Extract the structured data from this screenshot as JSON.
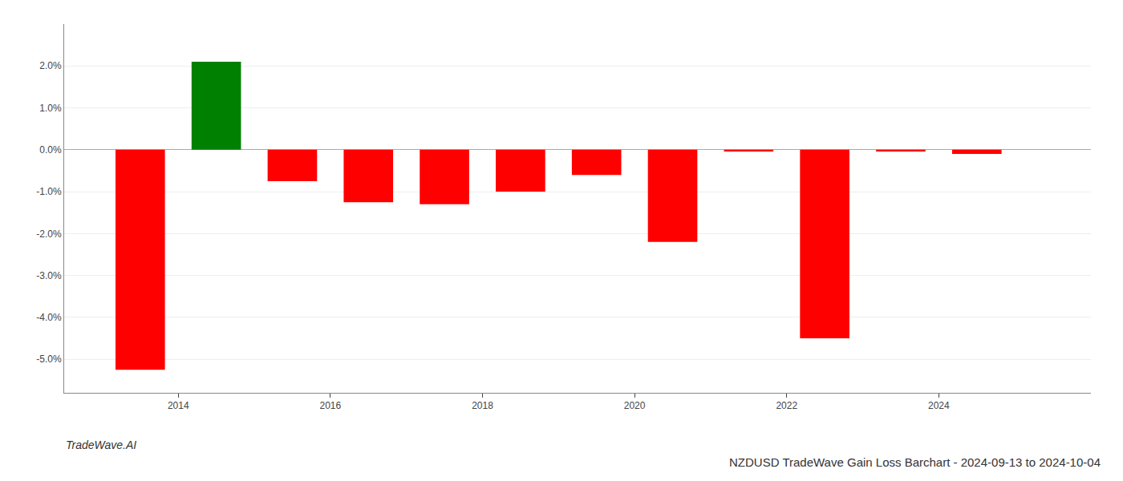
{
  "chart_data": {
    "type": "bar",
    "title": "NZDUSD TradeWave Gain Loss Barchart - 2024-09-13 to 2024-10-04",
    "annotations": [
      "TradeWave.AI"
    ],
    "x": [
      2013,
      2014,
      2015,
      2016,
      2017,
      2018,
      2019,
      2020,
      2021,
      2022,
      2023,
      2024
    ],
    "values": [
      -0.0525,
      0.021,
      -0.0075,
      -0.0125,
      -0.013,
      -0.01,
      -0.006,
      -0.022,
      -0.0004,
      -0.045,
      -0.0004,
      -0.001
    ],
    "colors": [
      "#ff0000",
      "#008000",
      "#ff0000",
      "#ff0000",
      "#ff0000",
      "#ff0000",
      "#ff0000",
      "#ff0000",
      "#ff0000",
      "#ff0000",
      "#ff0000",
      "#ff0000"
    ],
    "xlim": [
      2012.0,
      2025.5
    ],
    "xticks": [
      {
        "value": 2013.5,
        "label": "2014"
      },
      {
        "value": 2015.5,
        "label": "2016"
      },
      {
        "value": 2017.5,
        "label": "2018"
      },
      {
        "value": 2019.5,
        "label": "2020"
      },
      {
        "value": 2021.5,
        "label": "2022"
      },
      {
        "value": 2023.5,
        "label": "2024"
      }
    ],
    "ylim": [
      -0.058,
      0.03
    ],
    "yticks": [
      {
        "value": -0.05,
        "label": "-5.0%"
      },
      {
        "value": -0.04,
        "label": "-4.0%"
      },
      {
        "value": -0.03,
        "label": "-3.0%"
      },
      {
        "value": -0.02,
        "label": "-2.0%"
      },
      {
        "value": -0.01,
        "label": "-1.0%"
      },
      {
        "value": 0.0,
        "label": "0.0%"
      },
      {
        "value": 0.01,
        "label": "1.0%"
      },
      {
        "value": 0.02,
        "label": "2.0%"
      }
    ],
    "grid": true
  }
}
